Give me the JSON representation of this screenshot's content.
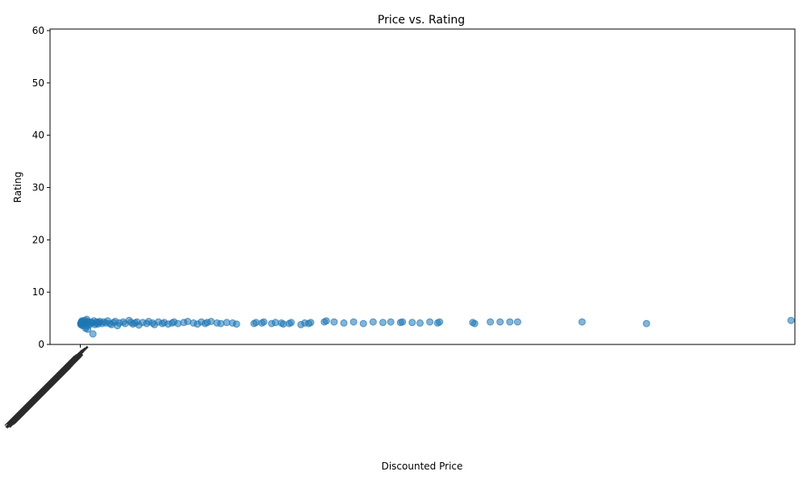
{
  "chart_data": {
    "type": "scatter",
    "title": "Price vs. Rating",
    "xlabel": "Discounted Price",
    "ylabel": "Rating",
    "ylim": [
      0,
      60.3
    ],
    "xlim": [
      -15500,
      366000
    ],
    "yticks": [
      0,
      10,
      20,
      30,
      40,
      50,
      60
    ],
    "xtick_note": "overlapping unreadable price tick labels clustered at the left of the x-axis",
    "color": "#1f77b4",
    "grid": false,
    "points": [
      [
        199,
        4.0
      ],
      [
        299,
        3.8
      ],
      [
        399,
        4.2
      ],
      [
        499,
        4.1
      ],
      [
        599,
        3.9
      ],
      [
        699,
        4.3
      ],
      [
        799,
        4.5
      ],
      [
        899,
        4.0
      ],
      [
        999,
        4.2
      ],
      [
        1099,
        3.6
      ],
      [
        1299,
        4.4
      ],
      [
        1499,
        4.1
      ],
      [
        1599,
        3.9
      ],
      [
        1799,
        4.3
      ],
      [
        1999,
        4.0
      ],
      [
        2199,
        4.6
      ],
      [
        2499,
        4.2
      ],
      [
        2699,
        3.1
      ],
      [
        2999,
        3.5
      ],
      [
        3299,
        4.8
      ],
      [
        3499,
        4.4
      ],
      [
        3799,
        2.9
      ],
      [
        3999,
        4.1
      ],
      [
        4499,
        3.7
      ],
      [
        4999,
        4.3
      ],
      [
        5499,
        4.0
      ],
      [
        5999,
        4.2
      ],
      [
        6499,
        2.0
      ],
      [
        6999,
        4.5
      ],
      [
        7499,
        3.8
      ],
      [
        7999,
        4.1
      ],
      [
        8499,
        4.3
      ],
      [
        8999,
        3.9
      ],
      [
        9499,
        4.2
      ],
      [
        9999,
        4.4
      ],
      [
        10999,
        4.0
      ],
      [
        11999,
        4.3
      ],
      [
        12999,
        4.1
      ],
      [
        13999,
        4.5
      ],
      [
        14999,
        4.0
      ],
      [
        15999,
        3.8
      ],
      [
        16999,
        4.2
      ],
      [
        17999,
        4.4
      ],
      [
        18999,
        3.6
      ],
      [
        19999,
        4.1
      ],
      [
        21999,
        4.3
      ],
      [
        22999,
        4.0
      ],
      [
        24999,
        4.6
      ],
      [
        25999,
        4.2
      ],
      [
        26999,
        3.9
      ],
      [
        27999,
        4.1
      ],
      [
        28999,
        4.3
      ],
      [
        29999,
        3.7
      ],
      [
        31999,
        4.2
      ],
      [
        33999,
        4.0
      ],
      [
        34999,
        4.4
      ],
      [
        36999,
        4.1
      ],
      [
        37999,
        3.8
      ],
      [
        39999,
        4.3
      ],
      [
        41999,
        4.0
      ],
      [
        42999,
        4.2
      ],
      [
        44999,
        3.9
      ],
      [
        46999,
        4.1
      ],
      [
        47999,
        4.3
      ],
      [
        49999,
        4.0
      ],
      [
        52999,
        4.2
      ],
      [
        54999,
        4.4
      ],
      [
        57999,
        4.1
      ],
      [
        59999,
        3.9
      ],
      [
        61999,
        4.3
      ],
      [
        63999,
        4.0
      ],
      [
        64999,
        4.2
      ],
      [
        66999,
        4.4
      ],
      [
        69999,
        4.1
      ],
      [
        71999,
        4.0
      ],
      [
        74999,
        4.2
      ],
      [
        77999,
        4.1
      ],
      [
        79999,
        3.9
      ],
      [
        88999,
        4.0
      ],
      [
        89999,
        4.2
      ],
      [
        92999,
        4.1
      ],
      [
        93999,
        4.3
      ],
      [
        97999,
        4.0
      ],
      [
        99999,
        4.2
      ],
      [
        102999,
        4.1
      ],
      [
        103999,
        3.9
      ],
      [
        106999,
        4.0
      ],
      [
        107999,
        4.2
      ],
      [
        112999,
        3.8
      ],
      [
        114999,
        4.1
      ],
      [
        116999,
        4.0
      ],
      [
        117999,
        4.2
      ],
      [
        124999,
        4.3
      ],
      [
        125999,
        4.5
      ],
      [
        129999,
        4.3
      ],
      [
        134999,
        4.1
      ],
      [
        139999,
        4.3
      ],
      [
        144999,
        4.0
      ],
      [
        149999,
        4.3
      ],
      [
        154999,
        4.2
      ],
      [
        158999,
        4.3
      ],
      [
        163999,
        4.2
      ],
      [
        164999,
        4.3
      ],
      [
        169999,
        4.2
      ],
      [
        173999,
        4.1
      ],
      [
        178999,
        4.3
      ],
      [
        182999,
        4.1
      ],
      [
        183999,
        4.3
      ],
      [
        200999,
        4.2
      ],
      [
        201999,
        4.0
      ],
      [
        209999,
        4.3
      ],
      [
        214999,
        4.3
      ],
      [
        219999,
        4.3
      ],
      [
        223999,
        4.3
      ],
      [
        256999,
        4.3
      ],
      [
        289999,
        4.0
      ],
      [
        363999,
        4.6
      ]
    ]
  }
}
